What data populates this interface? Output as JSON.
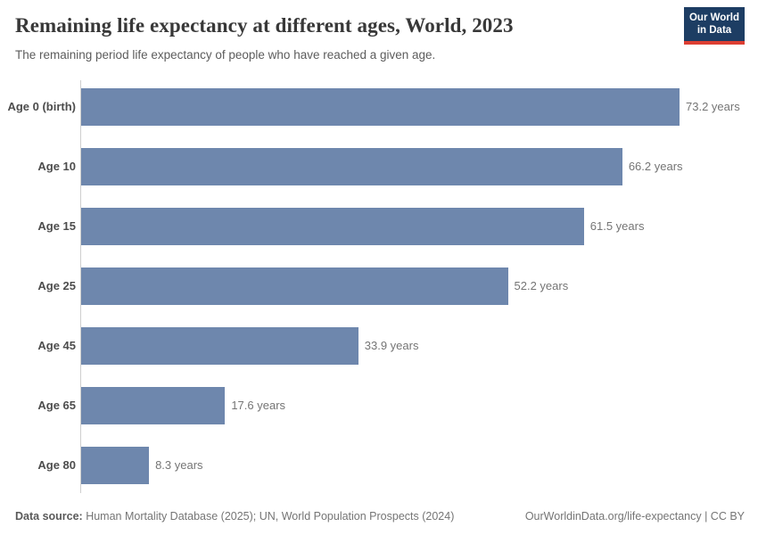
{
  "header": {
    "title": "Remaining life expectancy at different ages, World, 2023",
    "subtitle": "The remaining period life expectancy of people who have reached a given age.",
    "logo": {
      "line1": "Our World",
      "line2": "in Data",
      "bg_color": "#1d3d63",
      "accent_color": "#dc3e32"
    }
  },
  "chart_data": {
    "type": "bar",
    "orientation": "horizontal",
    "title": "Remaining life expectancy at different ages, World, 2023",
    "subtitle": "The remaining period life expectancy of people who have reached a given age.",
    "categories": [
      "Age 0 (birth)",
      "Age 10",
      "Age 15",
      "Age 25",
      "Age 45",
      "Age 65",
      "Age 80"
    ],
    "values": [
      73.2,
      66.2,
      61.5,
      52.2,
      33.9,
      17.6,
      8.3
    ],
    "value_labels": [
      "73.2 years",
      "66.2 years",
      "61.5 years",
      "52.2 years",
      "33.9 years",
      "17.6 years",
      "8.3 years"
    ],
    "unit": "years",
    "xlim": [
      0,
      73.2
    ],
    "grid": false,
    "legend": "none",
    "bar_color": "#6e87ad",
    "axis_line_color": "#cfcfcf"
  },
  "footer": {
    "datasource_label": "Data source:",
    "datasource_text": " Human Mortality Database (2025); UN, World Population Prospects (2024)",
    "link_text": "OurWorldinData.org/life-expectancy | CC BY"
  }
}
